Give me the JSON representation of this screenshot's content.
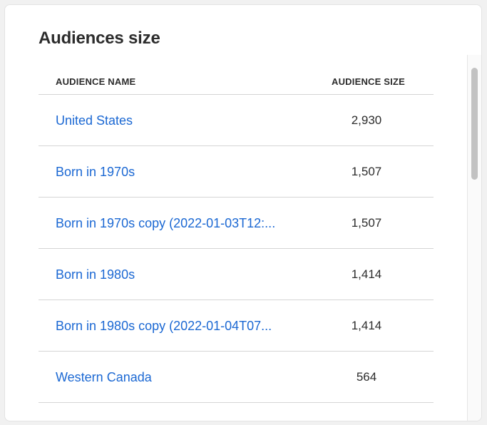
{
  "card": {
    "title": "Audiences size"
  },
  "table": {
    "columns": {
      "name": "AUDIENCE NAME",
      "size": "AUDIENCE SIZE"
    },
    "rows": [
      {
        "name": "United States",
        "size": "2,930"
      },
      {
        "name": "Born in 1970s",
        "size": "1,507"
      },
      {
        "name": "Born in 1970s copy (2022-01-03T12:...",
        "size": "1,507"
      },
      {
        "name": "Born in 1980s",
        "size": "1,414"
      },
      {
        "name": "Born in 1980s copy (2022-01-04T07...",
        "size": "1,414"
      },
      {
        "name": "Western Canada",
        "size": "564"
      }
    ]
  },
  "colors": {
    "link": "#1b68d3",
    "text": "#2c2c2c",
    "divider": "#d5d5d5",
    "scroll_thumb": "#c2c2c2"
  }
}
